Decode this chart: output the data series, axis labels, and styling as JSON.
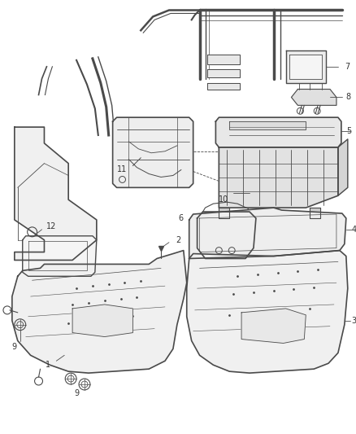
{
  "bg_color": "#ffffff",
  "line_color": "#4a4a4a",
  "figsize": [
    4.38,
    5.33
  ],
  "dpi": 100
}
